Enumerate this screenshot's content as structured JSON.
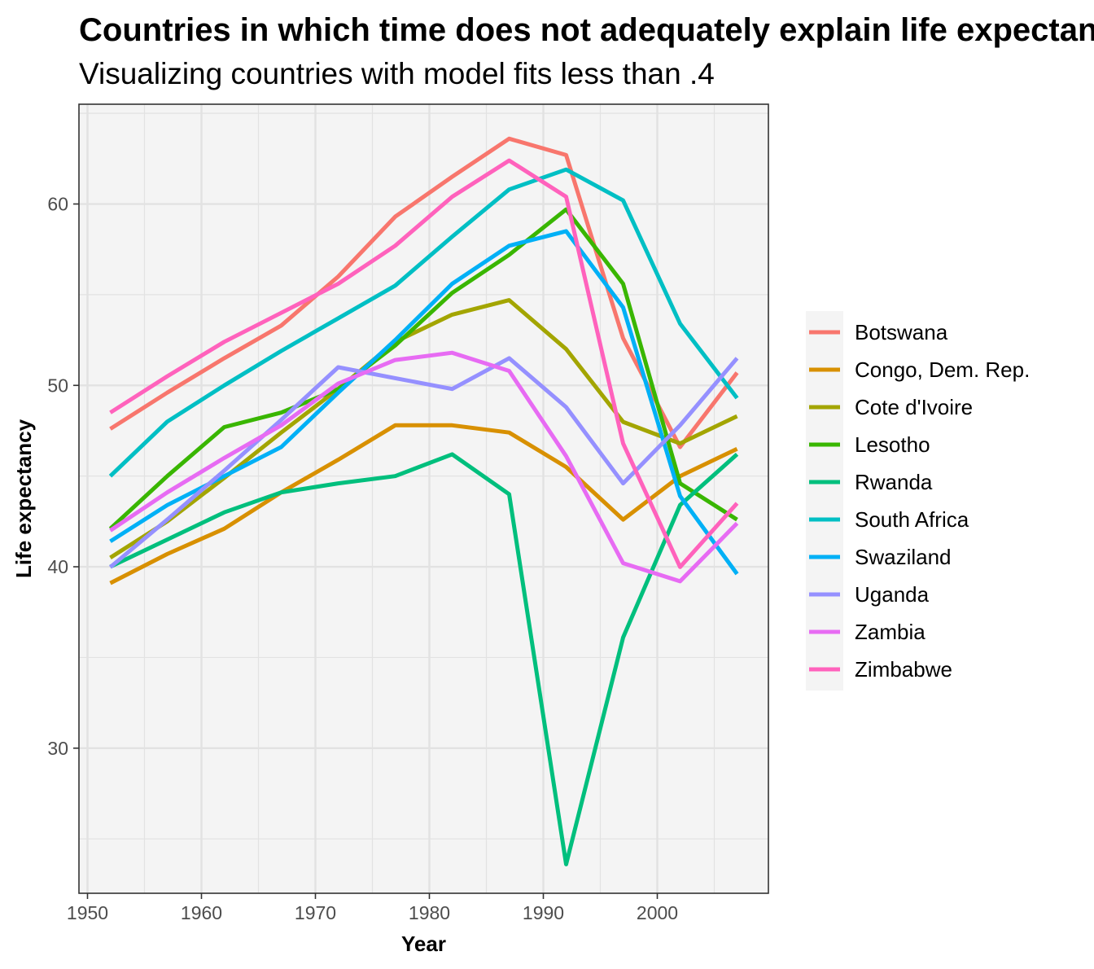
{
  "chart_data": {
    "type": "line",
    "title": "Countries in which time does not adequately explain life expectancy",
    "subtitle": "Visualizing countries with model fits less than .4",
    "xlabel": "Year",
    "ylabel": "Life expectancy",
    "xlim": [
      1949.25,
      2009.75
    ],
    "ylim": [
      22,
      65.5
    ],
    "x_ticks": [
      1950,
      1960,
      1970,
      1980,
      1990,
      2000
    ],
    "y_ticks": [
      30,
      40,
      50,
      60
    ],
    "grid": true,
    "legend_position": "right",
    "x": [
      1952,
      1957,
      1962,
      1967,
      1972,
      1977,
      1982,
      1987,
      1992,
      1997,
      2002,
      2007
    ],
    "series": [
      {
        "name": "Botswana",
        "color": "#F8766D",
        "values": [
          47.6,
          49.6,
          51.5,
          53.3,
          56.0,
          59.3,
          61.5,
          63.6,
          62.7,
          52.6,
          46.6,
          50.7
        ]
      },
      {
        "name": "Congo, Dem. Rep.",
        "color": "#D89000",
        "values": [
          39.1,
          40.7,
          42.1,
          44.1,
          45.9,
          47.8,
          47.8,
          47.4,
          45.5,
          42.6,
          45.0,
          46.5
        ]
      },
      {
        "name": "Cote d'Ivoire",
        "color": "#A3A500",
        "values": [
          40.5,
          42.5,
          44.9,
          47.4,
          49.8,
          52.4,
          53.9,
          54.7,
          52.0,
          47.99,
          46.8,
          48.3
        ]
      },
      {
        "name": "Lesotho",
        "color": "#39B600",
        "values": [
          42.1,
          45.0,
          47.7,
          48.5,
          49.8,
          52.2,
          55.1,
          57.2,
          59.7,
          55.6,
          44.6,
          42.6
        ]
      },
      {
        "name": "Rwanda",
        "color": "#00BF7D",
        "values": [
          40.0,
          41.5,
          43.0,
          44.1,
          44.6,
          45.0,
          46.2,
          44.0,
          23.6,
          36.1,
          43.4,
          46.2
        ]
      },
      {
        "name": "South Africa",
        "color": "#00BFC4",
        "values": [
          45.0,
          48.0,
          50.0,
          51.9,
          53.7,
          55.5,
          58.2,
          60.8,
          61.9,
          60.2,
          53.4,
          49.3
        ]
      },
      {
        "name": "Swaziland",
        "color": "#00B0F6",
        "values": [
          41.4,
          43.4,
          45.0,
          46.6,
          49.6,
          52.5,
          55.6,
          57.7,
          58.5,
          54.3,
          43.9,
          39.6
        ]
      },
      {
        "name": "Uganda",
        "color": "#9590FF",
        "values": [
          39.98,
          42.6,
          45.3,
          48.1,
          51.0,
          50.4,
          49.8,
          51.5,
          48.8,
          44.6,
          47.8,
          51.5
        ]
      },
      {
        "name": "Zambia",
        "color": "#E76BF3",
        "values": [
          42.0,
          44.1,
          46.0,
          47.8,
          50.1,
          51.4,
          51.8,
          50.8,
          46.1,
          40.2,
          39.2,
          42.4
        ]
      },
      {
        "name": "Zimbabwe",
        "color": "#FF62BC",
        "values": [
          48.5,
          50.5,
          52.4,
          54.0,
          55.6,
          57.7,
          60.4,
          62.4,
          60.4,
          46.8,
          39.99,
          43.5
        ]
      }
    ]
  }
}
